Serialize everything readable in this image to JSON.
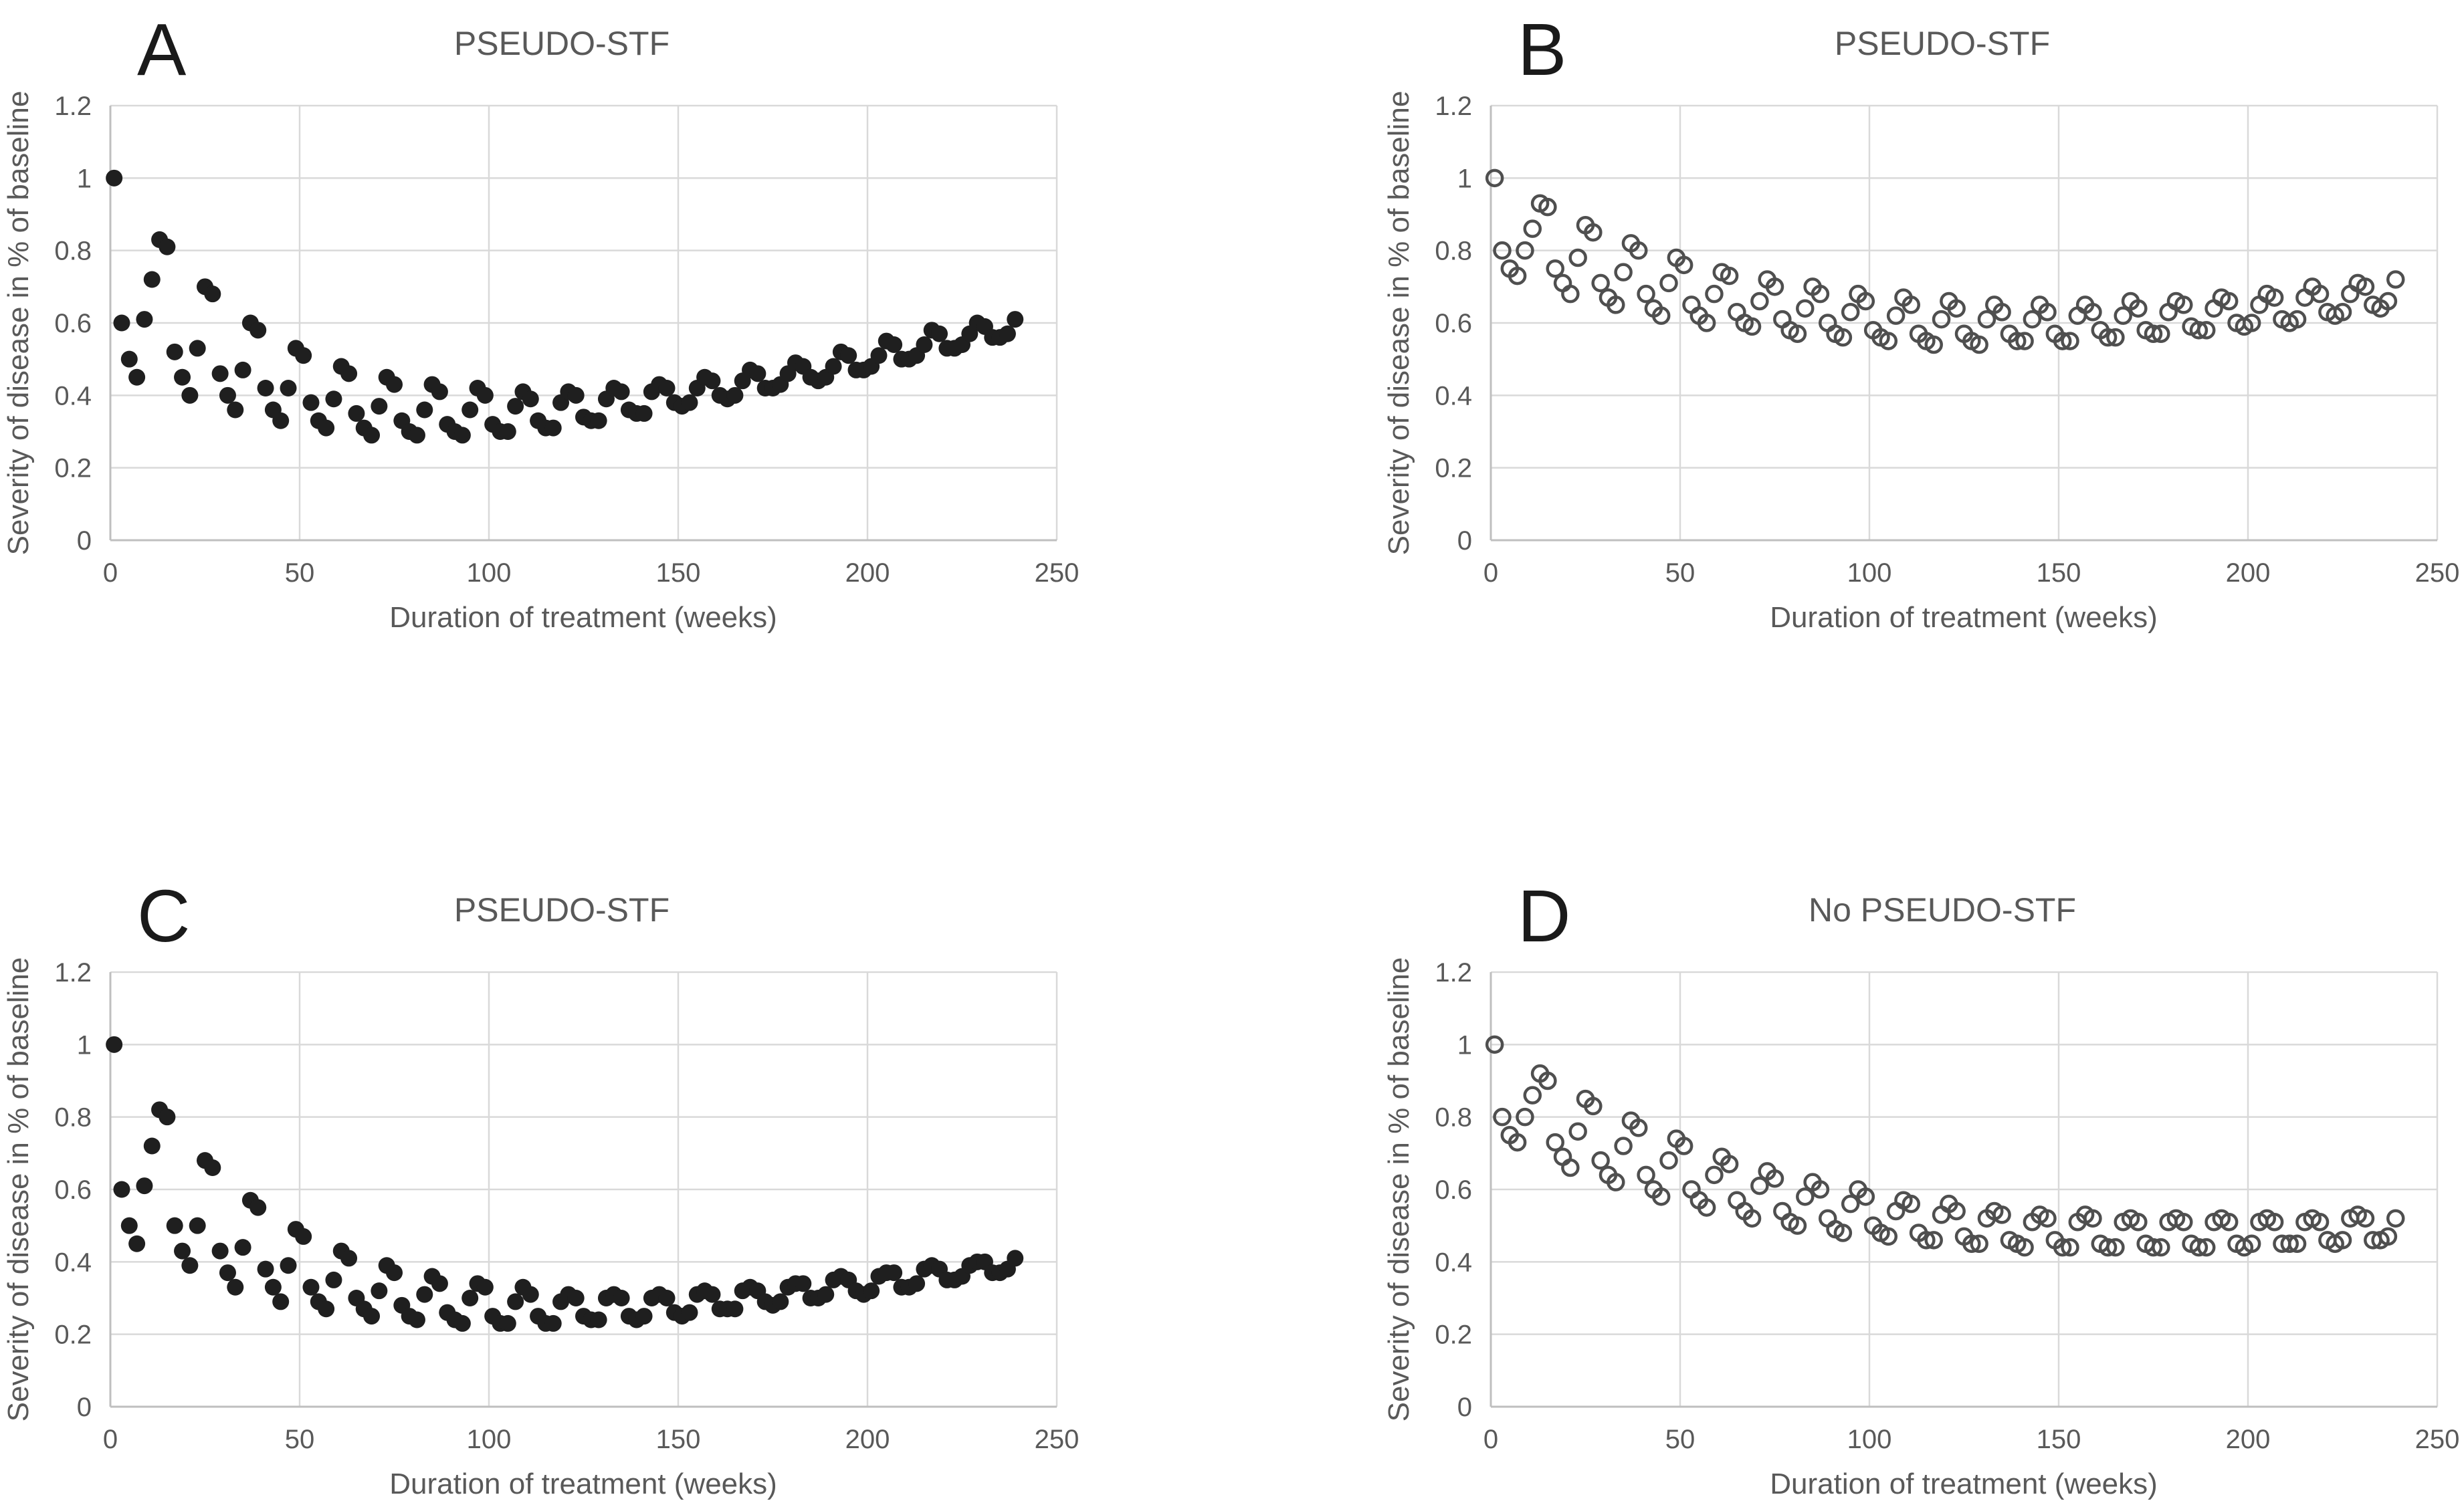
{
  "figure": {
    "panel_labels": [
      "A",
      "B",
      "C",
      "D"
    ]
  },
  "colors": {
    "background": "#ffffff",
    "gridline": "#d9d9d9",
    "axis_line": "#bfbfbf",
    "text_gray": "#595959",
    "filled_marker": "#1f1f1f",
    "open_marker_stroke": "#4f4f4f"
  },
  "chart_data": [
    {
      "type": "scatter",
      "panel_label": "A",
      "title": "PSEUDO-STF",
      "xlabel": "Duration of treatment (weeks)",
      "ylabel": "Severity of disease in % of baseline",
      "xlim": [
        0,
        250
      ],
      "ylim": [
        0,
        1.2
      ],
      "grid": true,
      "legend": "none",
      "marker": {
        "style": "filled",
        "color": "#1f1f1f"
      },
      "x_ticks": [
        {
          "v": 0,
          "label": "0"
        },
        {
          "v": 50,
          "label": "50"
        },
        {
          "v": 100,
          "label": "100"
        },
        {
          "v": 150,
          "label": "150"
        },
        {
          "v": 200,
          "label": "200"
        },
        {
          "v": 250,
          "label": "250"
        }
      ],
      "y_ticks": [
        {
          "v": 0,
          "label": "0"
        },
        {
          "v": 0.2,
          "label": "0.2"
        },
        {
          "v": 0.4,
          "label": "0.4"
        },
        {
          "v": 0.6,
          "label": "0.6"
        },
        {
          "v": 0.8,
          "label": "0.8"
        },
        {
          "v": 1,
          "label": "1"
        },
        {
          "v": 1.2,
          "label": "1.2"
        }
      ],
      "x": [
        1,
        3,
        5,
        7,
        9,
        11,
        13,
        15,
        17,
        19,
        21,
        23,
        25,
        27,
        29,
        31,
        33,
        35,
        37,
        39,
        41,
        43,
        45,
        47,
        49,
        51,
        53,
        55,
        57,
        59,
        61,
        63,
        65,
        67,
        69,
        71,
        73,
        75,
        77,
        79,
        81,
        83,
        85,
        87,
        89,
        91,
        93,
        95,
        97,
        99,
        101,
        103,
        105,
        107,
        109,
        111,
        113,
        115,
        117,
        119,
        121,
        123,
        125,
        127,
        129,
        131,
        133,
        135,
        137,
        139,
        141,
        143,
        145,
        147,
        149,
        151,
        153,
        155,
        157,
        159,
        161,
        163,
        165,
        167,
        169,
        171,
        173,
        175,
        177,
        179,
        181,
        183,
        185,
        187,
        189,
        191,
        193,
        195,
        197,
        199,
        201,
        203,
        205,
        207,
        209,
        211,
        213,
        215,
        217,
        219,
        221,
        223,
        225,
        227,
        229,
        231,
        233,
        235,
        237,
        239
      ],
      "y": [
        1.0,
        0.6,
        0.5,
        0.45,
        0.61,
        0.72,
        0.83,
        0.81,
        0.52,
        0.45,
        0.4,
        0.53,
        0.7,
        0.68,
        0.46,
        0.4,
        0.36,
        0.47,
        0.6,
        0.58,
        0.42,
        0.36,
        0.33,
        0.42,
        0.53,
        0.51,
        0.38,
        0.33,
        0.31,
        0.39,
        0.48,
        0.46,
        0.35,
        0.31,
        0.29,
        0.37,
        0.45,
        0.43,
        0.33,
        0.3,
        0.29,
        0.36,
        0.43,
        0.41,
        0.32,
        0.3,
        0.29,
        0.36,
        0.42,
        0.4,
        0.32,
        0.3,
        0.3,
        0.37,
        0.41,
        0.39,
        0.33,
        0.31,
        0.31,
        0.38,
        0.41,
        0.4,
        0.34,
        0.33,
        0.33,
        0.39,
        0.42,
        0.41,
        0.36,
        0.35,
        0.35,
        0.41,
        0.43,
        0.42,
        0.38,
        0.37,
        0.38,
        0.42,
        0.45,
        0.44,
        0.4,
        0.39,
        0.4,
        0.44,
        0.47,
        0.46,
        0.42,
        0.42,
        0.43,
        0.46,
        0.49,
        0.48,
        0.45,
        0.44,
        0.45,
        0.48,
        0.52,
        0.51,
        0.47,
        0.47,
        0.48,
        0.51,
        0.55,
        0.54,
        0.5,
        0.5,
        0.51,
        0.54,
        0.58,
        0.57,
        0.53,
        0.53,
        0.54,
        0.57,
        0.6,
        0.59,
        0.56,
        0.56,
        0.57,
        0.61
      ]
    },
    {
      "type": "scatter",
      "panel_label": "B",
      "title": "PSEUDO-STF",
      "xlabel": "Duration of treatment (weeks)",
      "ylabel": "Severity of disease in % of baseline",
      "xlim": [
        0,
        250
      ],
      "ylim": [
        0,
        1.2
      ],
      "grid": true,
      "legend": "none",
      "marker": {
        "style": "open",
        "color": "#4f4f4f"
      },
      "x_ticks": [
        {
          "v": 0,
          "label": "0"
        },
        {
          "v": 50,
          "label": "50"
        },
        {
          "v": 100,
          "label": "100"
        },
        {
          "v": 150,
          "label": "150"
        },
        {
          "v": 200,
          "label": "200"
        },
        {
          "v": 250,
          "label": "250"
        }
      ],
      "y_ticks": [
        {
          "v": 0,
          "label": "0"
        },
        {
          "v": 0.2,
          "label": "0.2"
        },
        {
          "v": 0.4,
          "label": "0.4"
        },
        {
          "v": 0.6,
          "label": "0.6"
        },
        {
          "v": 0.8,
          "label": "0.8"
        },
        {
          "v": 1,
          "label": "1"
        },
        {
          "v": 1.2,
          "label": "1.2"
        }
      ],
      "x": [
        1,
        3,
        5,
        7,
        9,
        11,
        13,
        15,
        17,
        19,
        21,
        23,
        25,
        27,
        29,
        31,
        33,
        35,
        37,
        39,
        41,
        43,
        45,
        47,
        49,
        51,
        53,
        55,
        57,
        59,
        61,
        63,
        65,
        67,
        69,
        71,
        73,
        75,
        77,
        79,
        81,
        83,
        85,
        87,
        89,
        91,
        93,
        95,
        97,
        99,
        101,
        103,
        105,
        107,
        109,
        111,
        113,
        115,
        117,
        119,
        121,
        123,
        125,
        127,
        129,
        131,
        133,
        135,
        137,
        139,
        141,
        143,
        145,
        147,
        149,
        151,
        153,
        155,
        157,
        159,
        161,
        163,
        165,
        167,
        169,
        171,
        173,
        175,
        177,
        179,
        181,
        183,
        185,
        187,
        189,
        191,
        193,
        195,
        197,
        199,
        201,
        203,
        205,
        207,
        209,
        211,
        213,
        215,
        217,
        219,
        221,
        223,
        225,
        227,
        229,
        231,
        233,
        235,
        237,
        239
      ],
      "y": [
        1.0,
        0.8,
        0.75,
        0.73,
        0.8,
        0.86,
        0.93,
        0.92,
        0.75,
        0.71,
        0.68,
        0.78,
        0.87,
        0.85,
        0.71,
        0.67,
        0.65,
        0.74,
        0.82,
        0.8,
        0.68,
        0.64,
        0.62,
        0.71,
        0.78,
        0.76,
        0.65,
        0.62,
        0.6,
        0.68,
        0.74,
        0.73,
        0.63,
        0.6,
        0.59,
        0.66,
        0.72,
        0.7,
        0.61,
        0.58,
        0.57,
        0.64,
        0.7,
        0.68,
        0.6,
        0.57,
        0.56,
        0.63,
        0.68,
        0.66,
        0.58,
        0.56,
        0.55,
        0.62,
        0.67,
        0.65,
        0.57,
        0.55,
        0.54,
        0.61,
        0.66,
        0.64,
        0.57,
        0.55,
        0.54,
        0.61,
        0.65,
        0.63,
        0.57,
        0.55,
        0.55,
        0.61,
        0.65,
        0.63,
        0.57,
        0.55,
        0.55,
        0.62,
        0.65,
        0.63,
        0.58,
        0.56,
        0.56,
        0.62,
        0.66,
        0.64,
        0.58,
        0.57,
        0.57,
        0.63,
        0.66,
        0.65,
        0.59,
        0.58,
        0.58,
        0.64,
        0.67,
        0.66,
        0.6,
        0.59,
        0.6,
        0.65,
        0.68,
        0.67,
        0.61,
        0.6,
        0.61,
        0.67,
        0.7,
        0.68,
        0.63,
        0.62,
        0.63,
        0.68,
        0.71,
        0.7,
        0.65,
        0.64,
        0.66,
        0.72
      ]
    },
    {
      "type": "scatter",
      "panel_label": "C",
      "title": "PSEUDO-STF",
      "xlabel": "Duration of treatment (weeks)",
      "ylabel": "Severity of disease in % of baseline",
      "xlim": [
        0,
        250
      ],
      "ylim": [
        0,
        1.2
      ],
      "grid": true,
      "legend": "none",
      "marker": {
        "style": "filled",
        "color": "#1f1f1f"
      },
      "x_ticks": [
        {
          "v": 0,
          "label": "0"
        },
        {
          "v": 50,
          "label": "50"
        },
        {
          "v": 100,
          "label": "100"
        },
        {
          "v": 150,
          "label": "150"
        },
        {
          "v": 200,
          "label": "200"
        },
        {
          "v": 250,
          "label": "250"
        }
      ],
      "y_ticks": [
        {
          "v": 0,
          "label": "0"
        },
        {
          "v": 0.2,
          "label": "0.2"
        },
        {
          "v": 0.4,
          "label": "0.4"
        },
        {
          "v": 0.6,
          "label": "0.6"
        },
        {
          "v": 0.8,
          "label": "0.8"
        },
        {
          "v": 1,
          "label": "1"
        },
        {
          "v": 1.2,
          "label": "1.2"
        }
      ],
      "x": [
        1,
        3,
        5,
        7,
        9,
        11,
        13,
        15,
        17,
        19,
        21,
        23,
        25,
        27,
        29,
        31,
        33,
        35,
        37,
        39,
        41,
        43,
        45,
        47,
        49,
        51,
        53,
        55,
        57,
        59,
        61,
        63,
        65,
        67,
        69,
        71,
        73,
        75,
        77,
        79,
        81,
        83,
        85,
        87,
        89,
        91,
        93,
        95,
        97,
        99,
        101,
        103,
        105,
        107,
        109,
        111,
        113,
        115,
        117,
        119,
        121,
        123,
        125,
        127,
        129,
        131,
        133,
        135,
        137,
        139,
        141,
        143,
        145,
        147,
        149,
        151,
        153,
        155,
        157,
        159,
        161,
        163,
        165,
        167,
        169,
        171,
        173,
        175,
        177,
        179,
        181,
        183,
        185,
        187,
        189,
        191,
        193,
        195,
        197,
        199,
        201,
        203,
        205,
        207,
        209,
        211,
        213,
        215,
        217,
        219,
        221,
        223,
        225,
        227,
        229,
        231,
        233,
        235,
        237,
        239
      ],
      "y": [
        1.0,
        0.6,
        0.5,
        0.45,
        0.61,
        0.72,
        0.82,
        0.8,
        0.5,
        0.43,
        0.39,
        0.5,
        0.68,
        0.66,
        0.43,
        0.37,
        0.33,
        0.44,
        0.57,
        0.55,
        0.38,
        0.33,
        0.29,
        0.39,
        0.49,
        0.47,
        0.33,
        0.29,
        0.27,
        0.35,
        0.43,
        0.41,
        0.3,
        0.27,
        0.25,
        0.32,
        0.39,
        0.37,
        0.28,
        0.25,
        0.24,
        0.31,
        0.36,
        0.34,
        0.26,
        0.24,
        0.23,
        0.3,
        0.34,
        0.33,
        0.25,
        0.23,
        0.23,
        0.29,
        0.33,
        0.31,
        0.25,
        0.23,
        0.23,
        0.29,
        0.31,
        0.3,
        0.25,
        0.24,
        0.24,
        0.3,
        0.31,
        0.3,
        0.25,
        0.24,
        0.25,
        0.3,
        0.31,
        0.3,
        0.26,
        0.25,
        0.26,
        0.31,
        0.32,
        0.31,
        0.27,
        0.27,
        0.27,
        0.32,
        0.33,
        0.32,
        0.29,
        0.28,
        0.29,
        0.33,
        0.34,
        0.34,
        0.3,
        0.3,
        0.31,
        0.35,
        0.36,
        0.35,
        0.32,
        0.31,
        0.32,
        0.36,
        0.37,
        0.37,
        0.33,
        0.33,
        0.34,
        0.38,
        0.39,
        0.38,
        0.35,
        0.35,
        0.36,
        0.39,
        0.4,
        0.4,
        0.37,
        0.37,
        0.38,
        0.41
      ]
    },
    {
      "type": "scatter",
      "panel_label": "D",
      "title": "No PSEUDO-STF",
      "xlabel": "Duration of treatment (weeks)",
      "ylabel": "Severity of disease in % of baseline",
      "xlim": [
        0,
        250
      ],
      "ylim": [
        0,
        1.2
      ],
      "grid": true,
      "legend": "none",
      "marker": {
        "style": "open",
        "color": "#4f4f4f"
      },
      "x_ticks": [
        {
          "v": 0,
          "label": "0"
        },
        {
          "v": 50,
          "label": "50"
        },
        {
          "v": 100,
          "label": "100"
        },
        {
          "v": 150,
          "label": "150"
        },
        {
          "v": 200,
          "label": "200"
        },
        {
          "v": 250,
          "label": "250"
        }
      ],
      "y_ticks": [
        {
          "v": 0,
          "label": "0"
        },
        {
          "v": 0.2,
          "label": "0.2"
        },
        {
          "v": 0.4,
          "label": "0.4"
        },
        {
          "v": 0.6,
          "label": "0.6"
        },
        {
          "v": 0.8,
          "label": "0.8"
        },
        {
          "v": 1,
          "label": "1"
        },
        {
          "v": 1.2,
          "label": "1.2"
        }
      ],
      "x": [
        1,
        3,
        5,
        7,
        9,
        11,
        13,
        15,
        17,
        19,
        21,
        23,
        25,
        27,
        29,
        31,
        33,
        35,
        37,
        39,
        41,
        43,
        45,
        47,
        49,
        51,
        53,
        55,
        57,
        59,
        61,
        63,
        65,
        67,
        69,
        71,
        73,
        75,
        77,
        79,
        81,
        83,
        85,
        87,
        89,
        91,
        93,
        95,
        97,
        99,
        101,
        103,
        105,
        107,
        109,
        111,
        113,
        115,
        117,
        119,
        121,
        123,
        125,
        127,
        129,
        131,
        133,
        135,
        137,
        139,
        141,
        143,
        145,
        147,
        149,
        151,
        153,
        155,
        157,
        159,
        161,
        163,
        165,
        167,
        169,
        171,
        173,
        175,
        177,
        179,
        181,
        183,
        185,
        187,
        189,
        191,
        193,
        195,
        197,
        199,
        201,
        203,
        205,
        207,
        209,
        211,
        213,
        215,
        217,
        219,
        221,
        223,
        225,
        227,
        229,
        231,
        233,
        235,
        237,
        239
      ],
      "y": [
        1.0,
        0.8,
        0.75,
        0.73,
        0.8,
        0.86,
        0.92,
        0.9,
        0.73,
        0.69,
        0.66,
        0.76,
        0.85,
        0.83,
        0.68,
        0.64,
        0.62,
        0.72,
        0.79,
        0.77,
        0.64,
        0.6,
        0.58,
        0.68,
        0.74,
        0.72,
        0.6,
        0.57,
        0.55,
        0.64,
        0.69,
        0.67,
        0.57,
        0.54,
        0.52,
        0.61,
        0.65,
        0.63,
        0.54,
        0.51,
        0.5,
        0.58,
        0.62,
        0.6,
        0.52,
        0.49,
        0.48,
        0.56,
        0.6,
        0.58,
        0.5,
        0.48,
        0.47,
        0.54,
        0.57,
        0.56,
        0.48,
        0.46,
        0.46,
        0.53,
        0.56,
        0.54,
        0.47,
        0.45,
        0.45,
        0.52,
        0.54,
        0.53,
        0.46,
        0.45,
        0.44,
        0.51,
        0.53,
        0.52,
        0.46,
        0.44,
        0.44,
        0.51,
        0.53,
        0.52,
        0.45,
        0.44,
        0.44,
        0.51,
        0.52,
        0.51,
        0.45,
        0.44,
        0.44,
        0.51,
        0.52,
        0.51,
        0.45,
        0.44,
        0.44,
        0.51,
        0.52,
        0.51,
        0.45,
        0.44,
        0.45,
        0.51,
        0.52,
        0.51,
        0.45,
        0.45,
        0.45,
        0.51,
        0.52,
        0.51,
        0.46,
        0.45,
        0.46,
        0.52,
        0.53,
        0.52,
        0.46,
        0.46,
        0.47,
        0.52
      ]
    }
  ]
}
